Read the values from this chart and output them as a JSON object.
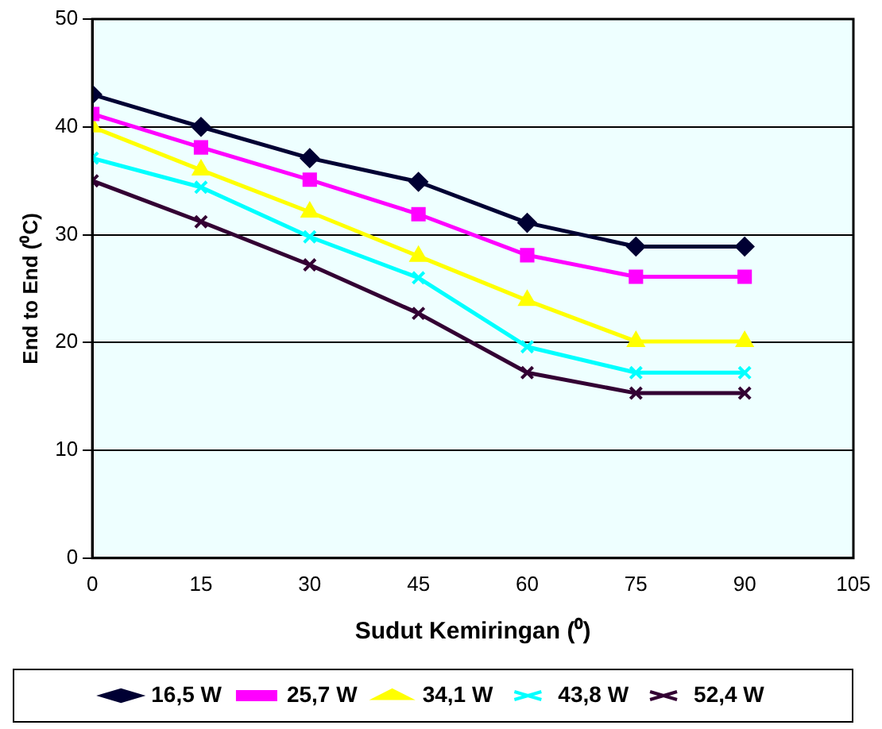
{
  "chart_data": {
    "type": "line",
    "xlabel": "Sudut Kemiringan (⁰)",
    "ylabel": "End to End (⁰C)",
    "x": [
      0,
      15,
      30,
      45,
      60,
      75,
      90
    ],
    "series": [
      {
        "name": "16,5 W",
        "color": "#000033",
        "marker": "diamond",
        "values": [
          43,
          40,
          37.1,
          34.9,
          31.1,
          28.9,
          28.9
        ]
      },
      {
        "name": "25,7 W",
        "color": "#ff00ff",
        "marker": "square",
        "values": [
          41.2,
          38.1,
          35.1,
          31.9,
          28.1,
          26.1,
          26.1
        ]
      },
      {
        "name": "34,1 W",
        "color": "#ffff00",
        "marker": "triangle",
        "values": [
          40,
          36,
          32.1,
          28,
          23.9,
          20.1,
          20.1
        ]
      },
      {
        "name": "43,8 W",
        "color": "#00ffff",
        "marker": "cross",
        "values": [
          37.1,
          34.4,
          29.8,
          26,
          19.6,
          17.2,
          17.2
        ]
      },
      {
        "name": "52,4 W",
        "color": "#330033",
        "marker": "cross",
        "values": [
          35,
          31.2,
          27.2,
          22.7,
          17.2,
          15.3,
          15.3
        ]
      }
    ],
    "xlim": [
      0,
      105
    ],
    "xticks": [
      0,
      15,
      30,
      45,
      60,
      75,
      90,
      105
    ],
    "ylim": [
      0,
      50
    ],
    "yticks": [
      0,
      10,
      20,
      30,
      40,
      50
    ],
    "grid": "y",
    "legend": "bottom",
    "line_style": "solid"
  }
}
